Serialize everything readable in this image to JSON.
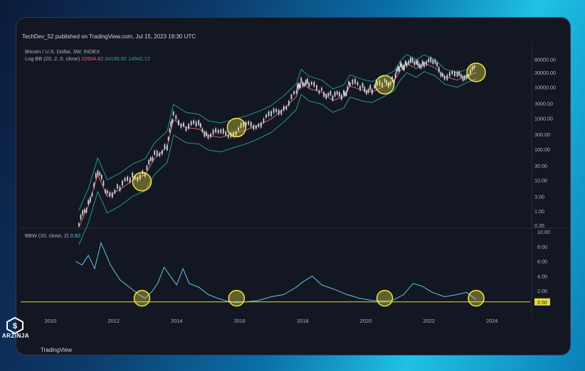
{
  "published_line": "TechDev_52 published on TradingView.com, Jul 15, 2023 19:30 UTC",
  "price_pane": {
    "symbol_line": "Bitcoin / U.S. Dollar, 3W, INDEX",
    "indicator_name": "Log BB (20, 2, 0, close)",
    "basis_value": "22604.42",
    "upper_value": "34195.92",
    "lower_value": "14942.12"
  },
  "bbw_pane": {
    "indicator_name": "BBW (20, close, 2)",
    "value": "0.82",
    "threshold_label": "0.50"
  },
  "branding": {
    "watermark": "TradingView",
    "site": "ARZINJA"
  },
  "colors": {
    "candle_up": "#d1d4dc",
    "basis_line": "#e57373",
    "band_line": "#26a69a",
    "bbw_line": "#5ec8e6",
    "highlight": "#f5e642",
    "threshold_line": "#e8dc3a"
  },
  "chart_data": [
    {
      "type": "line",
      "title": "Bitcoin / U.S. Dollar, 3W, INDEX",
      "scale": "log",
      "x_ticks": [
        "2010",
        "2012",
        "2014",
        "2016",
        "2018",
        "2020",
        "2022",
        "2024"
      ],
      "y_ticks": [
        "80000.00",
        "30000.00",
        "10000.00",
        "3000.00",
        "1000.00",
        "300.00",
        "100.00",
        "30.00",
        "10.00",
        "3.00",
        "1.00",
        "0.35"
      ],
      "series": [
        {
          "name": "Log BB (20, 2, 0, close)",
          "x": [
            2010.9,
            2011.2,
            2011.5,
            2011.8,
            2012.2,
            2012.6,
            2013.0,
            2013.3,
            2013.7,
            2013.9,
            2014.3,
            2014.7,
            2015.0,
            2015.4,
            2015.8,
            2016.2,
            2016.6,
            2017.0,
            2017.4,
            2017.8,
            2017.95,
            2018.2,
            2018.6,
            2018.95,
            2019.3,
            2019.5,
            2019.9,
            2020.2,
            2020.6,
            2020.9,
            2021.1,
            2021.3,
            2021.6,
            2021.85,
            2022.2,
            2022.5,
            2022.9,
            2023.2,
            2023.5
          ],
          "values": [
            0.3,
            1.5,
            15,
            3,
            5,
            10,
            15,
            50,
            120,
            900,
            500,
            450,
            280,
            240,
            320,
            420,
            600,
            950,
            2000,
            5000,
            15000,
            9000,
            7000,
            3700,
            5000,
            11000,
            8000,
            7000,
            11000,
            16000,
            35000,
            58000,
            40000,
            60000,
            42000,
            22000,
            17000,
            23000,
            30000
          ]
        }
      ],
      "highlights": [
        2012.9,
        2015.9,
        2020.6,
        2023.5
      ]
    },
    {
      "type": "line",
      "title": "BBW (20, close, 2)",
      "x_ticks": [
        "2010",
        "2012",
        "2014",
        "2016",
        "2018",
        "2020",
        "2022",
        "2024"
      ],
      "y_ticks": [
        "10.00",
        "8.00",
        "6.00",
        "4.00",
        "2.00",
        "0.50"
      ],
      "ylim": [
        0,
        10
      ],
      "threshold": 0.5,
      "series": [
        {
          "name": "BBW (20, close, 2)",
          "x": [
            2010.8,
            2011.0,
            2011.2,
            2011.4,
            2011.6,
            2011.9,
            2012.2,
            2012.5,
            2012.8,
            2013.0,
            2013.2,
            2013.4,
            2013.6,
            2013.8,
            2014.0,
            2014.2,
            2014.4,
            2014.7,
            2015.0,
            2015.3,
            2015.6,
            2015.9,
            2016.2,
            2016.6,
            2017.0,
            2017.4,
            2017.8,
            2018.0,
            2018.3,
            2018.6,
            2019.0,
            2019.4,
            2019.8,
            2020.2,
            2020.6,
            2020.9,
            2021.2,
            2021.5,
            2021.8,
            2022.1,
            2022.5,
            2022.9,
            2023.2,
            2023.5
          ],
          "values": [
            6.0,
            5.5,
            6.8,
            5.0,
            8.5,
            5.5,
            3.5,
            2.5,
            1.5,
            1.0,
            1.8,
            3.0,
            5.2,
            4.0,
            2.8,
            5.0,
            3.0,
            2.5,
            1.5,
            1.0,
            0.6,
            0.4,
            0.5,
            0.7,
            1.2,
            1.5,
            2.5,
            3.2,
            4.0,
            2.8,
            2.2,
            1.5,
            1.0,
            0.7,
            0.6,
            0.8,
            1.5,
            3.0,
            2.6,
            1.8,
            1.2,
            1.5,
            1.8,
            0.82
          ]
        }
      ],
      "highlights": [
        2012.9,
        2015.9,
        2020.6,
        2023.5
      ]
    }
  ]
}
